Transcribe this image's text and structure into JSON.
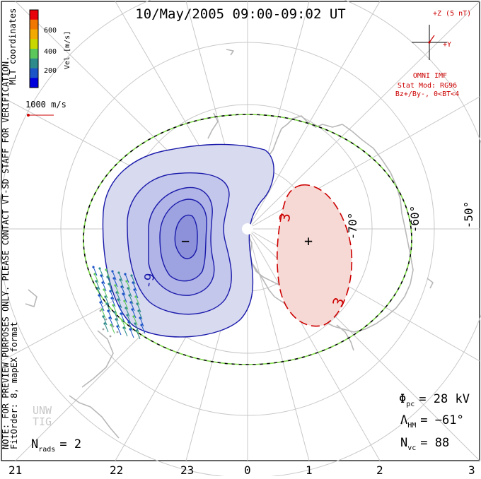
{
  "title": "10/May/2005 09:00-09:02 UT",
  "colorbar": {
    "label": "Vel [m/s]",
    "ticks": [
      "600",
      "400",
      "200"
    ],
    "colors": [
      "#e8000b",
      "#f07800",
      "#f2a900",
      "#c8d800",
      "#5cc85c",
      "#2e8b8b",
      "#1c55c8",
      "#0000dd"
    ]
  },
  "coordinate_label": "MLT coordinates",
  "side_notes": [
    "NOTE: FOR PREVIEW PURPOSES ONLY. PLEASE CONTACT VT-SD STAFF FOR VERIFICATION.",
    "FitOrder: 8, mapEX format"
  ],
  "scale_vector_label": "1000 m/s",
  "imf": {
    "z_label": "+Z (5 nT)",
    "y_label": "+Y",
    "source": "OMNI IMF",
    "model": "Stat Mod: RG96",
    "conditions": "Bz+/By-, 0<BT<4"
  },
  "latitude_labels": [
    "-70°",
    "-60°",
    "-50°"
  ],
  "potential_labels": {
    "neg_contour": "-9",
    "pos_contour_1": "3",
    "pos_contour_2": "3",
    "min_marker": "−",
    "max_marker": "+"
  },
  "stats": {
    "phi_symbol": "Φ",
    "phi_sub": "pc",
    "phi_value": "= 28 kV",
    "lambda_symbol": "Λ",
    "lambda_sub": "HM",
    "lambda_value": "= −61°",
    "nvc_symbol": "N",
    "nvc_sub": "vc",
    "nvc_value": "= 88",
    "nrads_symbol": "N",
    "nrads_sub": "rads",
    "nrads_value": "= 2"
  },
  "watermark": [
    "UNW",
    "TIG"
  ],
  "mlt_labels": [
    "21",
    "22",
    "23",
    "0",
    "1",
    "2",
    "3"
  ],
  "colors": {
    "negative_cell": "#1a1aaa",
    "positive_cell": "#cc0000",
    "boundary": "#7fd84a",
    "coastline": "#b8b8b8",
    "grid": "#c8c8c8"
  }
}
